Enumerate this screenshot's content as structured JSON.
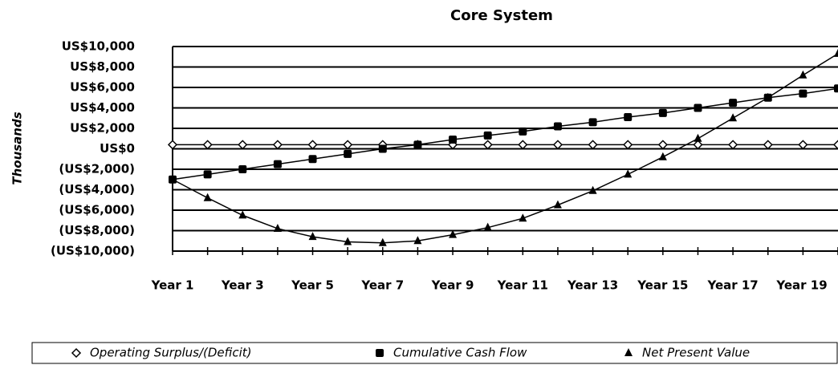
{
  "chart_data": {
    "type": "line",
    "title": "Core System",
    "y_label": "Thousands",
    "categories": [
      "Year 1",
      null,
      "Year 3",
      null,
      "Year 5",
      null,
      "Year 7",
      null,
      "Year 9",
      null,
      "Year 11",
      null,
      "Year 13",
      null,
      "Year 15",
      null,
      "Year 17",
      null,
      "Year 19",
      null
    ],
    "series": [
      {
        "name": "Operating Surplus/(Deficit)",
        "color": "#000000",
        "marker": "diamond",
        "values": [
          400,
          400,
          400,
          400,
          400,
          400,
          400,
          400,
          400,
          400,
          400,
          400,
          400,
          400,
          400,
          400,
          400,
          400,
          400,
          400
        ]
      },
      {
        "name": "Cumulative Cash Flow",
        "color": "#000000",
        "marker": "square",
        "values": [
          -3000,
          -2500,
          -2000,
          -1500,
          -1000,
          -500,
          0,
          400,
          900,
          1300,
          1700,
          2200,
          2600,
          3100,
          3500,
          4000,
          4500,
          5000,
          5400,
          5900
        ]
      },
      {
        "name": "Net Present Value",
        "color": "#000000",
        "marker": "triangle",
        "values": [
          -3000,
          -4800,
          -6500,
          -7800,
          -8600,
          -9100,
          -9200,
          -9000,
          -8400,
          -7700,
          -6800,
          -5500,
          -4100,
          -2500,
          -800,
          1000,
          3000,
          5000,
          7200,
          9300
        ]
      }
    ],
    "ylim": [
      -10000,
      10000
    ],
    "yticks": [
      {
        "value": -10000,
        "label": "(US$10,000)"
      },
      {
        "value": -8000,
        "label": "(US$8,000)"
      },
      {
        "value": -6000,
        "label": "(US$6,000)"
      },
      {
        "value": -4000,
        "label": "(US$4,000)"
      },
      {
        "value": -2000,
        "label": "(US$2,000)"
      },
      {
        "value": 0,
        "label": "US$0"
      },
      {
        "value": 2000,
        "label": "US$2,000"
      },
      {
        "value": 4000,
        "label": "US$4,000"
      },
      {
        "value": 6000,
        "label": "US$6,000"
      },
      {
        "value": 8000,
        "label": "US$8,000"
      },
      {
        "value": 10000,
        "label": "US$10,000"
      }
    ],
    "grid": true,
    "legend": "bottom"
  }
}
